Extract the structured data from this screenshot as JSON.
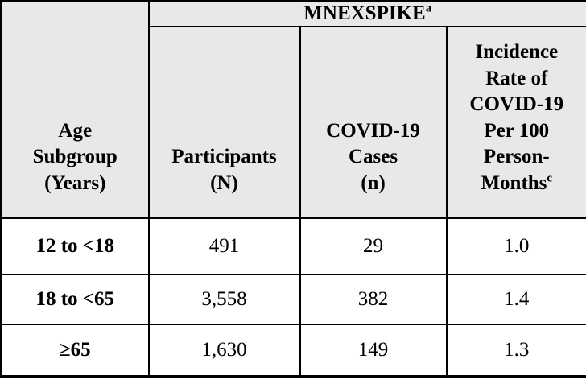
{
  "table": {
    "group_header": {
      "label": "MNEXSPIKE",
      "superscript": "a"
    },
    "columns": {
      "age": "Age\nSubgroup\n(Years)",
      "participants": "Participants\n(N)",
      "cases": "COVID-19\nCases\n(n)",
      "incidence": "Incidence\nRate of\nCOVID-19\nPer 100\nPerson-\nMonths",
      "incidence_superscript": "c"
    },
    "rows": [
      {
        "age": "12 to <18",
        "participants": "491",
        "cases": "29",
        "incidence": "1.0"
      },
      {
        "age": "18 to <65",
        "participants": "3,558",
        "cases": "382",
        "incidence": "1.4"
      },
      {
        "age": "≥65",
        "participants": "1,630",
        "cases": "149",
        "incidence": "1.3"
      }
    ],
    "colors": {
      "header_background": "#e8e8e8",
      "body_background": "#ffffff",
      "border": "#000000"
    }
  }
}
